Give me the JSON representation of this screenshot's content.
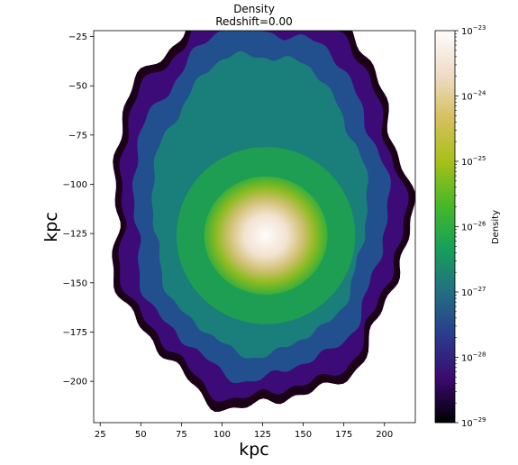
{
  "chart_data": {
    "type": "heatmap",
    "title": "Density",
    "subtitle": "Redshift=0.00",
    "xlabel": "kpc",
    "ylabel": "kpc",
    "xlim": [
      21,
      219
    ],
    "ylim": [
      -221,
      -22
    ],
    "x_ticks": [
      25,
      50,
      75,
      100,
      125,
      150,
      175,
      200
    ],
    "y_ticks": [
      -25,
      -50,
      -75,
      -100,
      -125,
      -150,
      -175,
      -200
    ],
    "x_tick_labels": [
      "25",
      "50",
      "75",
      "100",
      "125",
      "150",
      "175",
      "200"
    ],
    "y_tick_labels": [
      "−25",
      "−50",
      "−75",
      "−100",
      "−125",
      "−150",
      "−175",
      "−200"
    ],
    "colorbar": {
      "label": "Density",
      "scale": "log",
      "min": 1e-29,
      "max": 1e-23,
      "tick_exponents": [
        -29,
        -28,
        -27,
        -26,
        -25,
        -24,
        -23
      ],
      "tick_base": "10",
      "colormap": "gist_earth",
      "colormap_stops": [
        "#000000",
        "#3a0a6e",
        "#2a3c8c",
        "#236e82",
        "#16a05a",
        "#48b828",
        "#a8c018",
        "#d6c060",
        "#f0dcc8",
        "#fdfcfc"
      ]
    },
    "density_peak": {
      "x": 127,
      "y": -126,
      "log10_value": -23.0
    },
    "grid": false
  }
}
